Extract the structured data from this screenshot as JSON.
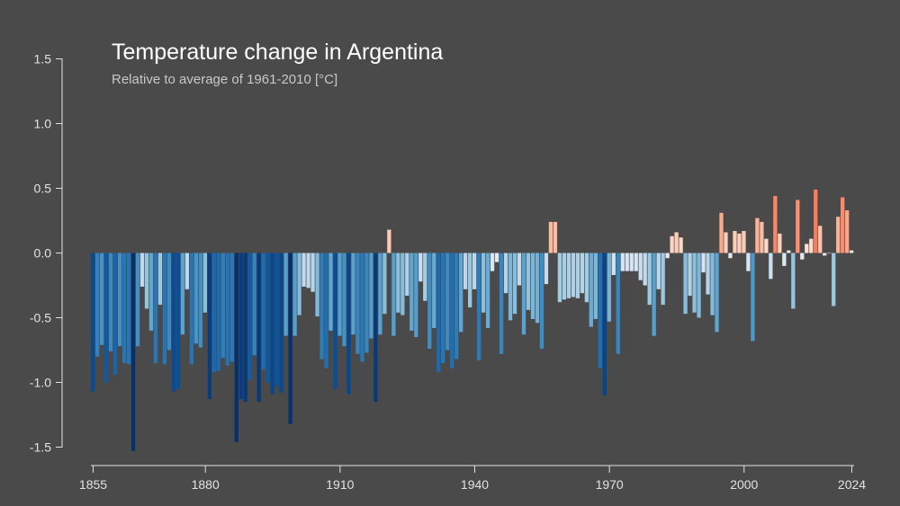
{
  "chart_data": {
    "type": "bar",
    "title": "Temperature change in Argentina",
    "subtitle": "Relative to average of 1961-2010  [°C]",
    "xlabel": "",
    "ylabel": "",
    "x_start": 1855,
    "x_end": 2024,
    "xticks": [
      1855,
      1880,
      1910,
      1940,
      1970,
      2000,
      2024
    ],
    "yticks": [
      -1.5,
      -1.0,
      -0.5,
      0.0,
      0.5,
      1.0,
      1.5
    ],
    "ytick_labels": [
      "-1.5",
      "-1.0",
      "-0.5",
      "0.0",
      "0.5",
      "1.0",
      "1.5"
    ],
    "ylim": [
      -1.5,
      1.5
    ],
    "grid": false,
    "legend": "none",
    "color_scale": {
      "min": -1.2,
      "max": 1.2,
      "stops": [
        "#08306b",
        "#08519c",
        "#2171b5",
        "#4292c6",
        "#6baed6",
        "#9ecae1",
        "#c6dbef",
        "#deebf7",
        "#fee0d2",
        "#fcbba1",
        "#fc9272",
        "#fb6a4a",
        "#ef3b2c",
        "#cb181d",
        "#a50f15",
        "#67000d"
      ]
    },
    "values": [
      -1.07,
      -0.8,
      -0.71,
      -1.0,
      -0.76,
      -0.94,
      -0.72,
      -0.85,
      -0.86,
      -1.53,
      -0.72,
      -0.26,
      -0.43,
      -0.6,
      -0.85,
      -0.4,
      -0.86,
      -0.75,
      -1.07,
      -1.05,
      -0.63,
      -0.28,
      -0.86,
      -0.7,
      -0.73,
      -0.46,
      -1.13,
      -0.92,
      -0.91,
      -0.81,
      -0.87,
      -0.84,
      -1.46,
      -1.13,
      -1.15,
      -0.98,
      -0.79,
      -1.15,
      -0.9,
      -1.0,
      -1.09,
      -1.03,
      -1.08,
      -0.64,
      -1.32,
      -0.64,
      -0.48,
      -0.26,
      -0.27,
      -0.3,
      -0.49,
      -0.82,
      -0.89,
      -0.6,
      -1.05,
      -0.64,
      -0.72,
      -1.09,
      -0.63,
      -0.78,
      -0.84,
      -0.77,
      -0.66,
      -1.15,
      -0.63,
      -0.47,
      0.18,
      -0.64,
      -0.46,
      -0.48,
      -0.33,
      -0.6,
      -0.65,
      -0.22,
      -0.37,
      -0.74,
      -0.58,
      -0.92,
      -0.85,
      -0.75,
      -0.89,
      -0.82,
      -0.61,
      -0.28,
      -0.42,
      -0.28,
      -0.83,
      -0.46,
      -0.58,
      -0.14,
      -0.07,
      -0.78,
      -0.31,
      -0.52,
      -0.47,
      -0.25,
      -0.63,
      -0.44,
      -0.51,
      -0.54,
      -0.74,
      -0.24,
      0.24,
      0.24,
      -0.38,
      -0.36,
      -0.35,
      -0.34,
      -0.35,
      -0.31,
      -0.38,
      -0.57,
      -0.51,
      -0.89,
      -1.1,
      -0.53,
      -0.17,
      -0.78,
      -0.14,
      -0.14,
      -0.14,
      -0.14,
      -0.21,
      -0.25,
      -0.4,
      -0.64,
      -0.28,
      -0.4,
      -0.04,
      0.13,
      0.16,
      0.12,
      -0.47,
      -0.33,
      -0.46,
      -0.5,
      -0.15,
      -0.32,
      -0.48,
      -0.61,
      0.31,
      0.16,
      -0.04,
      0.17,
      0.15,
      0.17,
      -0.14,
      -0.68,
      0.27,
      0.24,
      0.11,
      -0.2,
      0.44,
      0.15,
      -0.1,
      0.02,
      -0.43,
      0.41,
      -0.05,
      0.07,
      0.11,
      0.49,
      0.21,
      -0.02,
      0.0,
      -0.41,
      0.28,
      0.43,
      0.33,
      0.02
    ]
  }
}
